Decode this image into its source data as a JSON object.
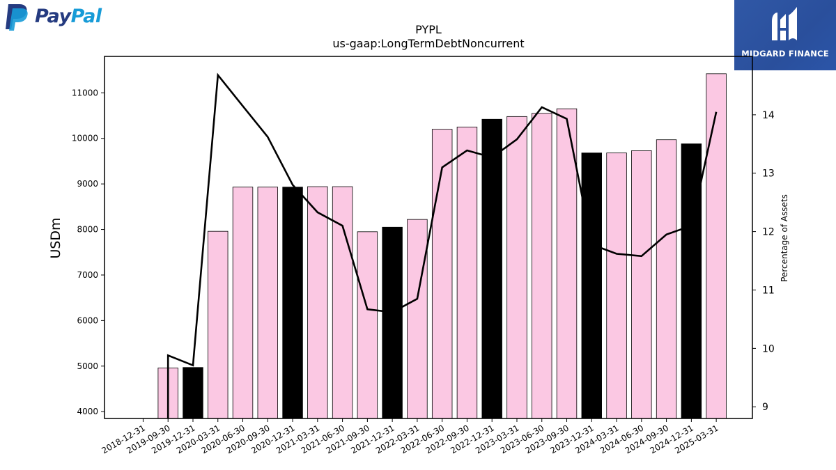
{
  "logos": {
    "paypal_text_pay": "Pay",
    "paypal_text_pal": "Pal",
    "paypal_colors": {
      "dark": "#253b80",
      "light": "#179bd7"
    },
    "midgard_text": "MIDGARD FINANCE"
  },
  "chart_data": {
    "type": "bar",
    "title": "PYPL",
    "subtitle": "us-gaap:LongTermDebtNoncurrent",
    "ylabel": "USDm",
    "y2label": "Percentage of Assets",
    "ylim": [
      3850,
      11800
    ],
    "y2lim": [
      8.8,
      15.0
    ],
    "yticks": [
      4000,
      5000,
      6000,
      7000,
      8000,
      9000,
      10000,
      11000
    ],
    "y2ticks": [
      9,
      10,
      11,
      12,
      13,
      14
    ],
    "categories": [
      "2018-12-31",
      "2019-09-30",
      "2019-12-31",
      "2020-03-31",
      "2020-06-30",
      "2020-09-30",
      "2020-12-31",
      "2021-03-31",
      "2021-06-30",
      "2021-09-30",
      "2021-12-31",
      "2022-03-31",
      "2022-06-30",
      "2022-09-30",
      "2022-12-31",
      "2023-03-31",
      "2023-06-30",
      "2023-09-30",
      "2023-12-31",
      "2024-03-31",
      "2024-06-30",
      "2024-09-30",
      "2024-12-31",
      "2025-03-31"
    ],
    "series": [
      {
        "kind": "bar",
        "values": [
          null,
          4960,
          4970,
          7960,
          8930,
          8930,
          8930,
          8940,
          8940,
          7950,
          8050,
          8220,
          10200,
          10250,
          10420,
          10480,
          10550,
          10650,
          9680,
          9680,
          9730,
          9970,
          9880,
          11420
        ],
        "highlight": [
          false,
          false,
          true,
          false,
          false,
          false,
          true,
          false,
          false,
          false,
          true,
          false,
          false,
          false,
          true,
          false,
          false,
          false,
          true,
          false,
          false,
          false,
          true,
          false
        ]
      },
      {
        "kind": "line",
        "axis": "right",
        "values": [
          null,
          9.88,
          9.71,
          14.68,
          14.15,
          13.62,
          12.8,
          12.33,
          12.1,
          10.67,
          10.62,
          10.85,
          13.1,
          13.39,
          13.27,
          13.58,
          14.13,
          13.93,
          11.78,
          11.62,
          11.58,
          11.95,
          12.1,
          14.05
        ]
      }
    ],
    "colors": {
      "bar_fill": "#fbc8e3",
      "bar_highlight": "#000000",
      "line": "#000000"
    },
    "grid": false,
    "legend": "none"
  }
}
